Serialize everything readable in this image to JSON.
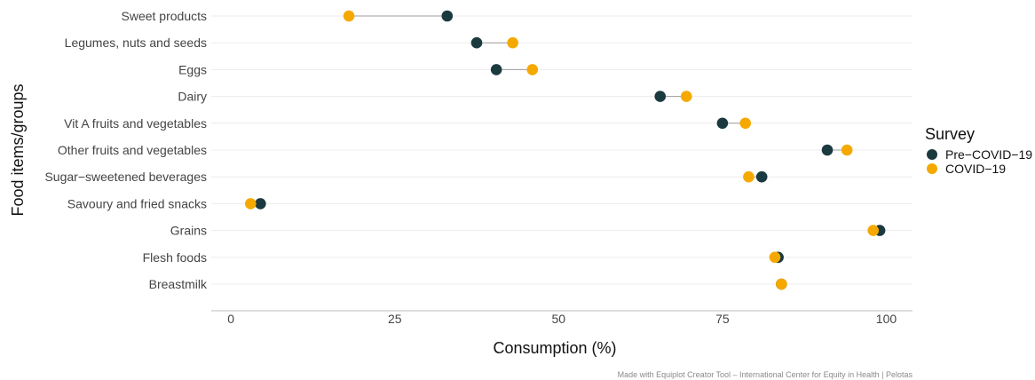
{
  "chart_data": {
    "type": "scatter",
    "subtype": "dumbbell",
    "title": "",
    "xlabel": "Consumption (%)",
    "ylabel": "Food items/groups",
    "xlim": [
      -3,
      104
    ],
    "xticks": [
      0,
      25,
      50,
      75,
      100
    ],
    "grid": true,
    "legend": {
      "title": "Survey",
      "position": "right"
    },
    "categories": [
      "Sweet products",
      "Legumes, nuts and seeds",
      "Eggs",
      "Dairy",
      "Vit A fruits and vegetables",
      "Other fruits and vegetables",
      "Sugar−sweetened beverages",
      "Savoury and fried snacks",
      "Grains",
      "Flesh foods",
      "Breastmilk"
    ],
    "series": [
      {
        "name": "Pre−COVID−19",
        "color": "#1b3a40",
        "values": [
          33,
          37.5,
          40.5,
          65.5,
          75,
          91,
          81,
          4.5,
          99,
          83.5,
          84
        ]
      },
      {
        "name": "COVID−19",
        "color": "#f5a900",
        "values": [
          18,
          43,
          46,
          69.5,
          78.5,
          94,
          79,
          3,
          98,
          83,
          84
        ]
      }
    ],
    "caption": "Made with Equiplot Creator Tool – International Center for Equity in Health | Pelotas"
  }
}
